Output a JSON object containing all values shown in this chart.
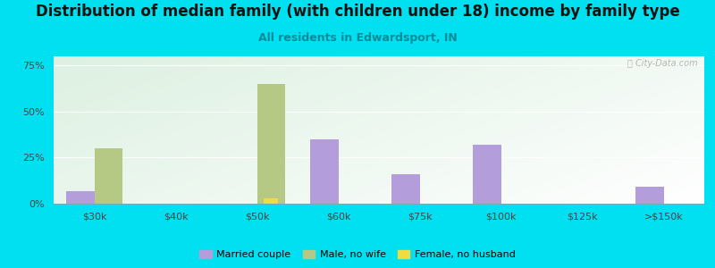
{
  "title": "Distribution of median family (with children under 18) income by family type",
  "subtitle": "All residents in Edwardsport, IN",
  "categories": [
    "$30k",
    "$40k",
    "$50k",
    "$60k",
    "$75k",
    "$100k",
    "$125k",
    ">$150k"
  ],
  "married_couple": [
    7,
    0,
    0,
    35,
    16,
    32,
    0,
    9
  ],
  "male_no_wife": [
    30,
    0,
    65,
    0,
    0,
    0,
    0,
    0
  ],
  "female_no_husband": [
    0,
    0,
    3,
    0,
    0,
    0,
    0,
    0
  ],
  "married_color": "#b39ddb",
  "male_color": "#b5c985",
  "female_color": "#eedc45",
  "background_cyan": "#00e0f0",
  "title_fontsize": 12,
  "subtitle_fontsize": 9,
  "subtitle_color": "#008b9a",
  "yticks": [
    0,
    25,
    50,
    75
  ],
  "ylim": [
    0,
    80
  ],
  "bar_width": 0.35,
  "watermark": "ⓘ City-Data.com"
}
